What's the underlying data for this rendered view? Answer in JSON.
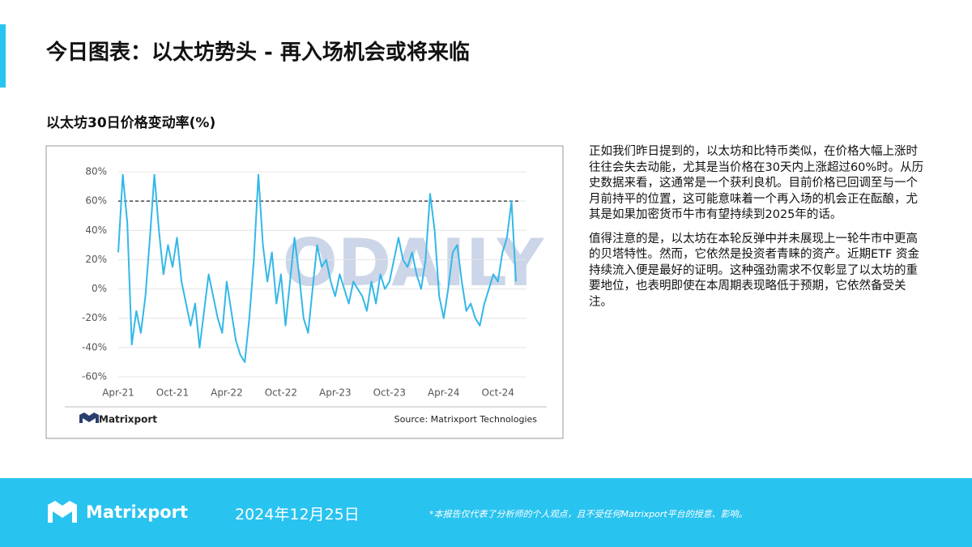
{
  "header": {
    "title": "今日图表：以太坊势头 - 再入场机会或将来临"
  },
  "chart_data": {
    "type": "line",
    "title": "以太坊30日价格变动率(%)",
    "brand": "Matrixport",
    "source": "Source: Matrixport Technologies",
    "watermark": "ODAILY",
    "color": "#33b8e8",
    "threshold": 60,
    "categories": [
      "Apr-21",
      null,
      null,
      null,
      null,
      null,
      null,
      null,
      null,
      null,
      null,
      null,
      "Oct-21",
      null,
      null,
      null,
      null,
      null,
      null,
      null,
      null,
      null,
      null,
      null,
      "Apr-22",
      null,
      null,
      null,
      null,
      null,
      null,
      null,
      null,
      null,
      null,
      null,
      "Oct-22",
      null,
      null,
      null,
      null,
      null,
      null,
      null,
      null,
      null,
      null,
      null,
      "Apr-23",
      null,
      null,
      null,
      null,
      null,
      null,
      null,
      null,
      null,
      null,
      null,
      "Oct-23",
      null,
      null,
      null,
      null,
      null,
      null,
      null,
      null,
      null,
      null,
      null,
      "Apr-24",
      null,
      null,
      null,
      null,
      null,
      null,
      null,
      null,
      null,
      null,
      null,
      "Oct-24",
      null,
      null,
      null,
      null
    ],
    "values": [
      25,
      78,
      45,
      -38,
      -15,
      -30,
      -5,
      35,
      78,
      40,
      10,
      30,
      15,
      35,
      5,
      -10,
      -25,
      -10,
      -40,
      -15,
      10,
      -5,
      -20,
      -30,
      5,
      -15,
      -35,
      -45,
      -50,
      -20,
      20,
      78,
      30,
      5,
      25,
      -10,
      10,
      -25,
      5,
      35,
      10,
      -20,
      -30,
      0,
      30,
      15,
      20,
      5,
      -5,
      10,
      0,
      -10,
      5,
      0,
      -5,
      -15,
      5,
      -10,
      10,
      0,
      5,
      20,
      35,
      20,
      15,
      25,
      10,
      0,
      20,
      65,
      40,
      -5,
      -20,
      0,
      25,
      30,
      5,
      -15,
      -10,
      -20,
      -25,
      -10,
      0,
      10,
      5,
      25,
      35,
      60,
      5
    ],
    "ylim": [
      -60,
      80
    ],
    "yticks": [
      {
        "value": -60,
        "label": "-60%"
      },
      {
        "value": -40,
        "label": "-40%"
      },
      {
        "value": -20,
        "label": "-20%"
      },
      {
        "value": 0,
        "label": "0%"
      },
      {
        "value": 20,
        "label": "20%"
      },
      {
        "value": 40,
        "label": "40%"
      },
      {
        "value": 60,
        "label": "60%"
      },
      {
        "value": 80,
        "label": "80%"
      }
    ],
    "grid": true
  },
  "body": {
    "paragraphs": [
      "正如我们昨日提到的，以太坊和比特币类似，在价格大幅上涨时往往会失去动能，尤其是当价格在30天内上涨超过60%时。从历史数据来看，这通常是一个获利良机。目前价格已回调至与一个月前持平的位置，这可能意味着一个再入场的机会正在酝酿，尤其是如果加密货币牛市有望持续到2025年的话。",
      "值得注意的是，以太坊在本轮反弹中并未展现上一轮牛市中更高的贝塔特性。然而，它依然是投资者青睐的资产。近期ETF 资金持续流入便是最好的证明。这种强劲需求不仅彰显了以太坊的重要地位，也表明即使在本周期表现略低于预期，它依然备受关注。"
    ]
  },
  "footer": {
    "brand": "Matrixport",
    "date": "2024年12月25日",
    "disclaimer": "*本报告仅代表了分析师的个人观点，且不受任何Matrixport平台的授意、影响。"
  }
}
